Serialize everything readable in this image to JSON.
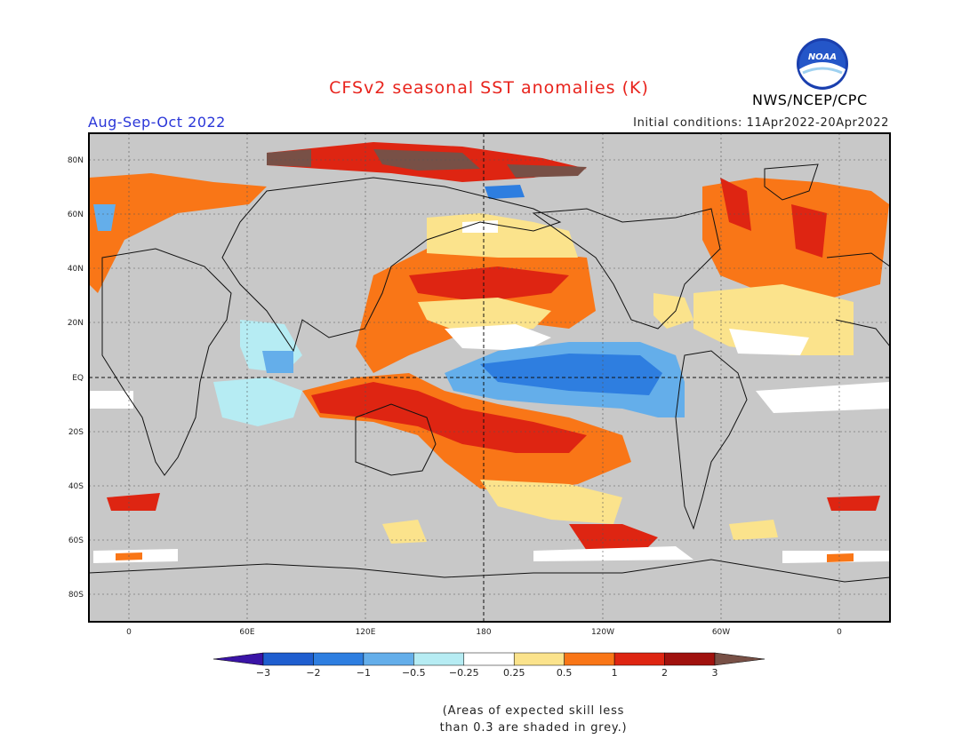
{
  "header": {
    "title": "CFSv2 seasonal SST anomalies (K)",
    "season": "Aug-Sep-Oct 2022",
    "initial_conditions": "Initial conditions: 11Apr2022-20Apr2022",
    "agency": "NWS/NCEP/CPC",
    "logo_text": "NOAA"
  },
  "map": {
    "lat_labels": [
      "80N",
      "60N",
      "40N",
      "20N",
      "EQ",
      "20S",
      "40S",
      "60S",
      "80S"
    ],
    "lon_labels": [
      "0",
      "60E",
      "120E",
      "180",
      "120W",
      "60W",
      "0"
    ],
    "colors": {
      "land": "#c8c8c8",
      "frame": "#000000",
      "grid": "#555555"
    }
  },
  "colorbar": {
    "labels": [
      "-3",
      "-2",
      "-1",
      "-0.5",
      "-0.25",
      "0.25",
      "0.5",
      "1",
      "2",
      "3"
    ],
    "colors": [
      "#3a14a6",
      "#1f5ecf",
      "#2e7ee0",
      "#64aeea",
      "#b6ecf3",
      "#ffffff",
      "#fbe38c",
      "#f97617",
      "#de2512",
      "#a0120e",
      "#785046"
    ]
  },
  "note": {
    "line1": "(Areas of expected skill less",
    "line2": "than 0.3 are shaded in grey.)"
  }
}
